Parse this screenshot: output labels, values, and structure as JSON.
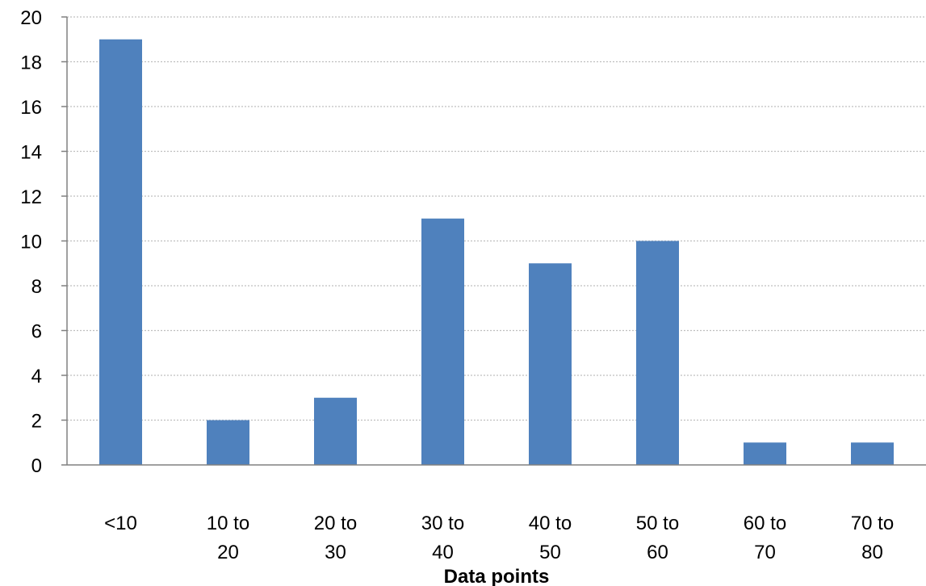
{
  "chart_data": {
    "type": "bar",
    "categories": [
      "<10",
      "10 to 20",
      "20 to 30",
      "30 to 40",
      "40 to 50",
      "50 to 60",
      "60 to 70",
      "70 to 80"
    ],
    "category_lines": [
      [
        "<10"
      ],
      [
        "10 to",
        "20"
      ],
      [
        "20 to",
        "30"
      ],
      [
        "30 to",
        "40"
      ],
      [
        "40 to",
        "50"
      ],
      [
        "50 to",
        "60"
      ],
      [
        "60 to",
        "70"
      ],
      [
        "70 to",
        "80"
      ]
    ],
    "values": [
      19,
      2,
      3,
      11,
      9,
      10,
      1,
      1
    ],
    "xlabel": "Data points",
    "ylabel": "",
    "ylim": [
      0,
      20
    ],
    "yticks": [
      0,
      2,
      4,
      6,
      8,
      10,
      12,
      14,
      16,
      18,
      20
    ],
    "grid": "horizontal dotted",
    "colors": {
      "bar": "#4f81bd",
      "grid": "#bfbfbf",
      "axis": "#808080",
      "text": "#000000"
    }
  }
}
